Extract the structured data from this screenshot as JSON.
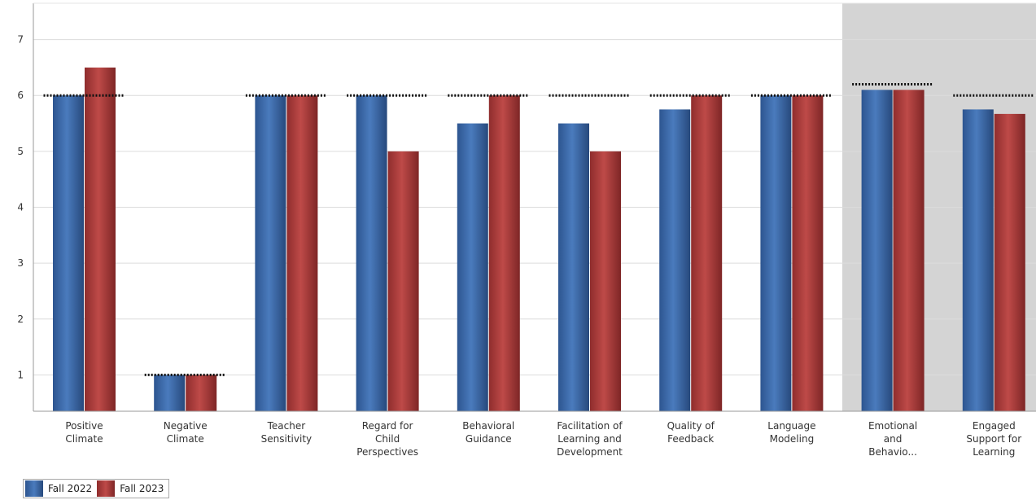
{
  "chart_data": {
    "type": "bar",
    "categories": [
      [
        "Positive",
        "Climate"
      ],
      [
        "Negative",
        "Climate"
      ],
      [
        "Teacher",
        "Sensitivity"
      ],
      [
        "Regard for",
        "Child",
        "Perspectives"
      ],
      [
        "Behavioral",
        "Guidance"
      ],
      [
        "Facilitation of",
        "Learning and",
        "Development"
      ],
      [
        "Quality of",
        "Feedback"
      ],
      [
        "Language",
        "Modeling"
      ],
      [
        "Emotional",
        "and",
        "Behavio..."
      ],
      [
        "Engaged",
        "Support for",
        "Learning"
      ]
    ],
    "series": [
      {
        "name": "Fall 2022",
        "color": "#3a68a4",
        "values": [
          6,
          1,
          6,
          6,
          5.5,
          5.5,
          5.75,
          6,
          6.1,
          5.75
        ]
      },
      {
        "name": "Fall 2023",
        "color": "#a83a3a",
        "values": [
          6.5,
          1,
          6,
          5,
          6,
          5,
          6,
          6,
          6.1,
          5.67
        ]
      }
    ],
    "reference_lines": [
      6,
      1,
      6,
      6,
      6,
      6,
      6,
      6,
      6.2,
      6
    ],
    "highlighted_categories": [
      8,
      9
    ],
    "yticks": [
      1,
      2,
      3,
      4,
      5,
      6,
      7
    ],
    "ylim": [
      0.35,
      7.65
    ],
    "grid": true,
    "legend": "bottom-left",
    "xlabel": "",
    "ylabel": "",
    "title": ""
  }
}
